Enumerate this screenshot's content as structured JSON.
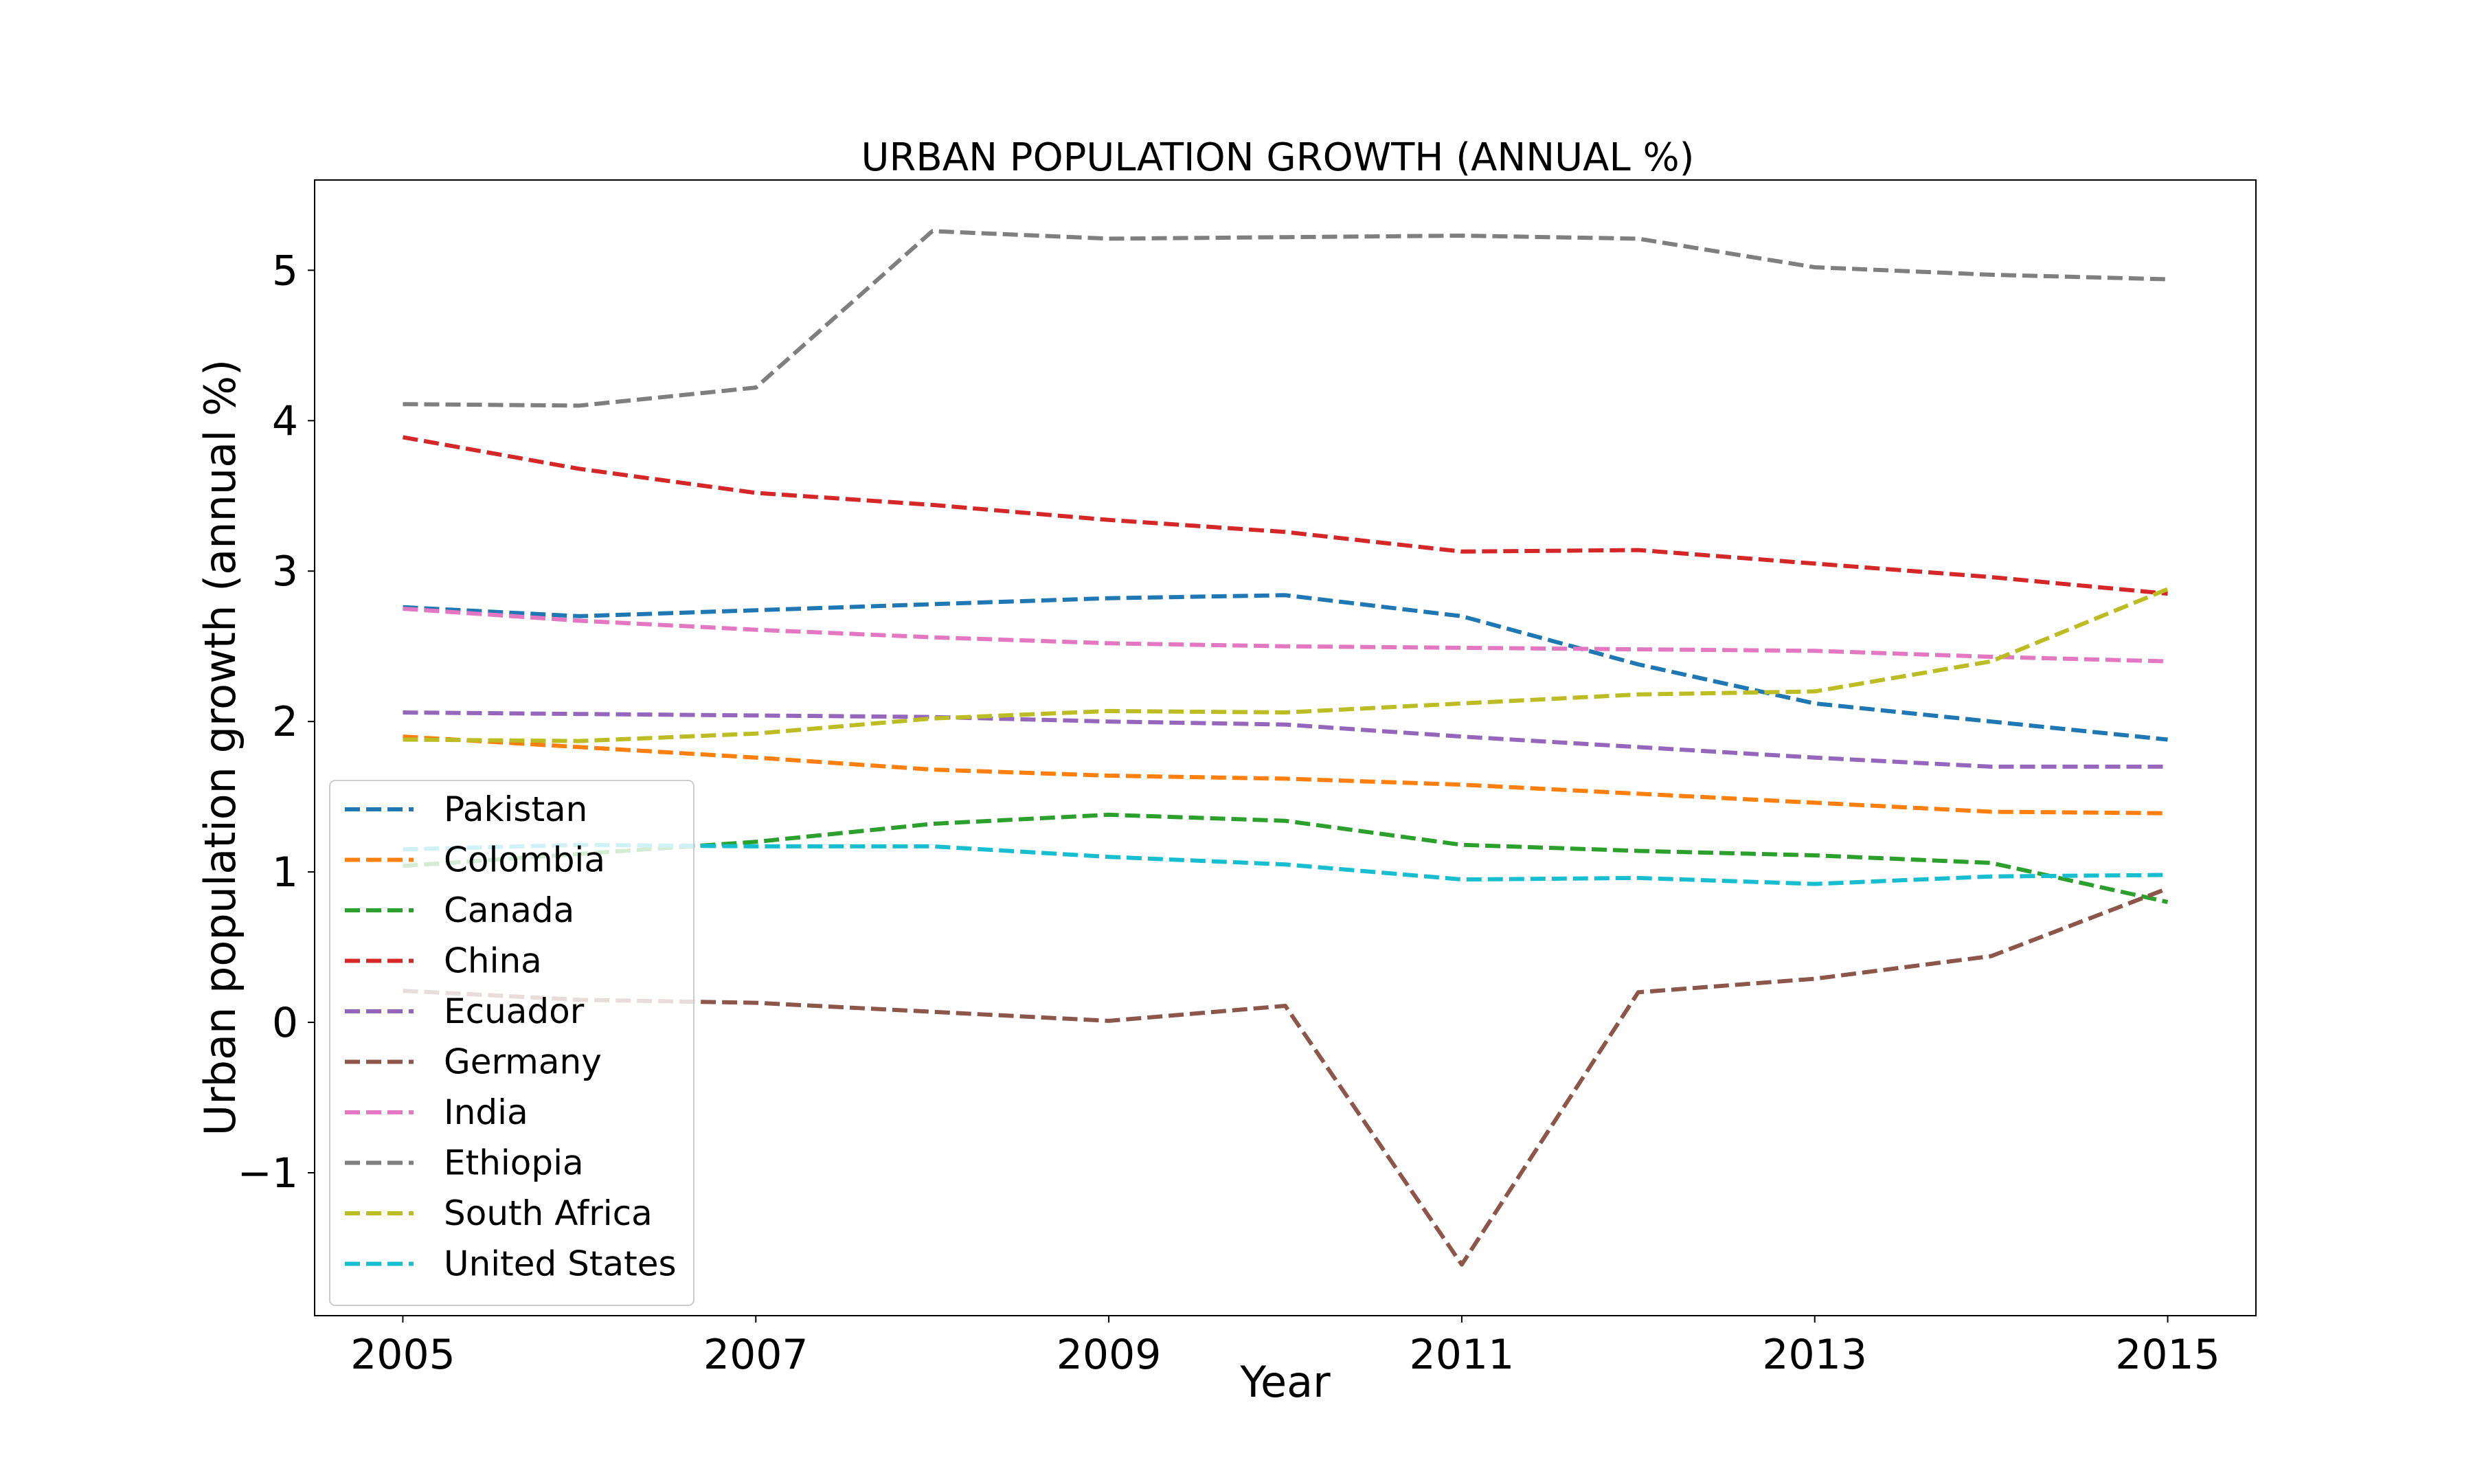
{
  "chart_data": {
    "type": "line",
    "title": "URBAN POPULATION GROWTH (ANNUAL %)",
    "xlabel": "Year",
    "ylabel": "Urban population growth (annual %)",
    "x": [
      2005,
      2006,
      2007,
      2008,
      2009,
      2010,
      2011,
      2012,
      2013,
      2014,
      2015
    ],
    "xticks": [
      "2005",
      "2007",
      "2009",
      "2011",
      "2013",
      "2015"
    ],
    "yticks": [
      "−1",
      "0",
      "1",
      "2",
      "3",
      "4",
      "5"
    ],
    "xlim": [
      2004.5,
      2015.5
    ],
    "ylim": [
      -1.95,
      5.6
    ],
    "grid": false,
    "legend_position": "lower-left",
    "line_style": "dashed",
    "series": [
      {
        "name": "Pakistan",
        "color": "#1f77b4",
        "values": [
          2.76,
          2.7,
          2.74,
          2.78,
          2.82,
          2.84,
          2.7,
          2.38,
          2.12,
          2.0,
          1.88
        ]
      },
      {
        "name": "Colombia",
        "color": "#ff7f0e",
        "values": [
          1.9,
          1.83,
          1.76,
          1.68,
          1.64,
          1.62,
          1.58,
          1.52,
          1.46,
          1.4,
          1.39
        ]
      },
      {
        "name": "Canada",
        "color": "#2ca02c",
        "values": [
          1.04,
          1.12,
          1.2,
          1.32,
          1.38,
          1.34,
          1.18,
          1.14,
          1.11,
          1.06,
          0.8
        ]
      },
      {
        "name": "China",
        "color": "#d62728",
        "values": [
          3.89,
          3.68,
          3.52,
          3.44,
          3.34,
          3.26,
          3.13,
          3.14,
          3.05,
          2.96,
          2.85
        ]
      },
      {
        "name": "Ecuador",
        "color": "#9467bd",
        "values": [
          2.06,
          2.05,
          2.04,
          2.03,
          2.0,
          1.98,
          1.9,
          1.83,
          1.76,
          1.7,
          1.7
        ]
      },
      {
        "name": "Germany",
        "color": "#8c564b",
        "values": [
          0.21,
          0.15,
          0.13,
          0.07,
          0.01,
          0.11,
          -1.61,
          0.2,
          0.29,
          0.44,
          0.89
        ]
      },
      {
        "name": "India",
        "color": "#e377c2",
        "values": [
          2.75,
          2.67,
          2.61,
          2.56,
          2.52,
          2.5,
          2.49,
          2.48,
          2.47,
          2.43,
          2.4
        ]
      },
      {
        "name": "Ethiopia",
        "color": "#7f7f7f",
        "values": [
          4.11,
          4.1,
          4.22,
          5.26,
          5.21,
          5.22,
          5.23,
          5.21,
          5.02,
          4.97,
          4.94
        ]
      },
      {
        "name": "South Africa",
        "color": "#bcbd22",
        "values": [
          1.88,
          1.87,
          1.92,
          2.02,
          2.07,
          2.06,
          2.12,
          2.18,
          2.2,
          2.4,
          2.88
        ]
      },
      {
        "name": "United States",
        "color": "#17becf",
        "values": [
          1.15,
          1.18,
          1.17,
          1.17,
          1.1,
          1.05,
          0.95,
          0.96,
          0.92,
          0.97,
          0.98
        ]
      }
    ]
  }
}
